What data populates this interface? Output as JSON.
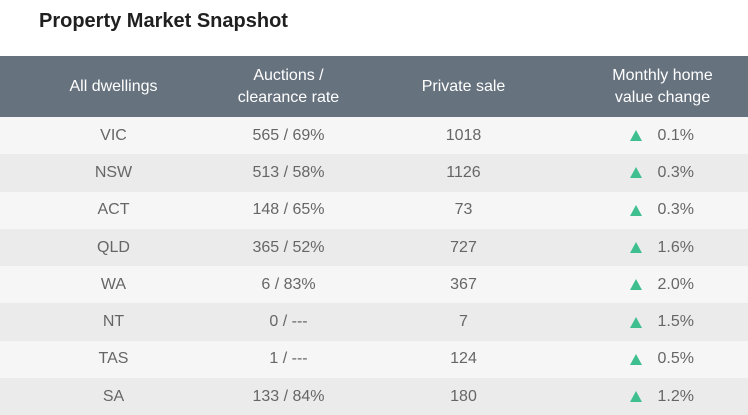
{
  "title": "Property Market Snapshot",
  "colors": {
    "header_bg": "#66727e",
    "up_arrow": "#3fbf8f",
    "row_odd": "#f6f6f6",
    "row_even": "#ebebeb"
  },
  "headers": {
    "dwellings": "All dwellings",
    "auctions_line1": "Auctions /",
    "auctions_line2": "clearance rate",
    "private_sale": "Private sale",
    "change_line1": "Monthly home",
    "change_line2": "value change"
  },
  "rows": [
    {
      "state": "VIC",
      "auctions": "565 / 69%",
      "private": "1018",
      "change": "0.1%",
      "direction": "up-arrow-icon"
    },
    {
      "state": "NSW",
      "auctions": "513 / 58%",
      "private": "1126",
      "change": "0.3%",
      "direction": "up-arrow-icon"
    },
    {
      "state": "ACT",
      "auctions": "148 / 65%",
      "private": "73",
      "change": "0.3%",
      "direction": "up-arrow-icon"
    },
    {
      "state": "QLD",
      "auctions": "365 / 52%",
      "private": "727",
      "change": "1.6%",
      "direction": "up-arrow-icon"
    },
    {
      "state": "WA",
      "auctions": "6 / 83%",
      "private": "367",
      "change": "2.0%",
      "direction": "up-arrow-icon"
    },
    {
      "state": "NT",
      "auctions": "0 / ---",
      "private": "7",
      "change": "1.5%",
      "direction": "up-arrow-icon"
    },
    {
      "state": "TAS",
      "auctions": "1 / ---",
      "private": "124",
      "change": "0.5%",
      "direction": "up-arrow-icon"
    },
    {
      "state": "SA",
      "auctions": "133 / 84%",
      "private": "180",
      "change": "1.2%",
      "direction": "up-arrow-icon"
    }
  ]
}
